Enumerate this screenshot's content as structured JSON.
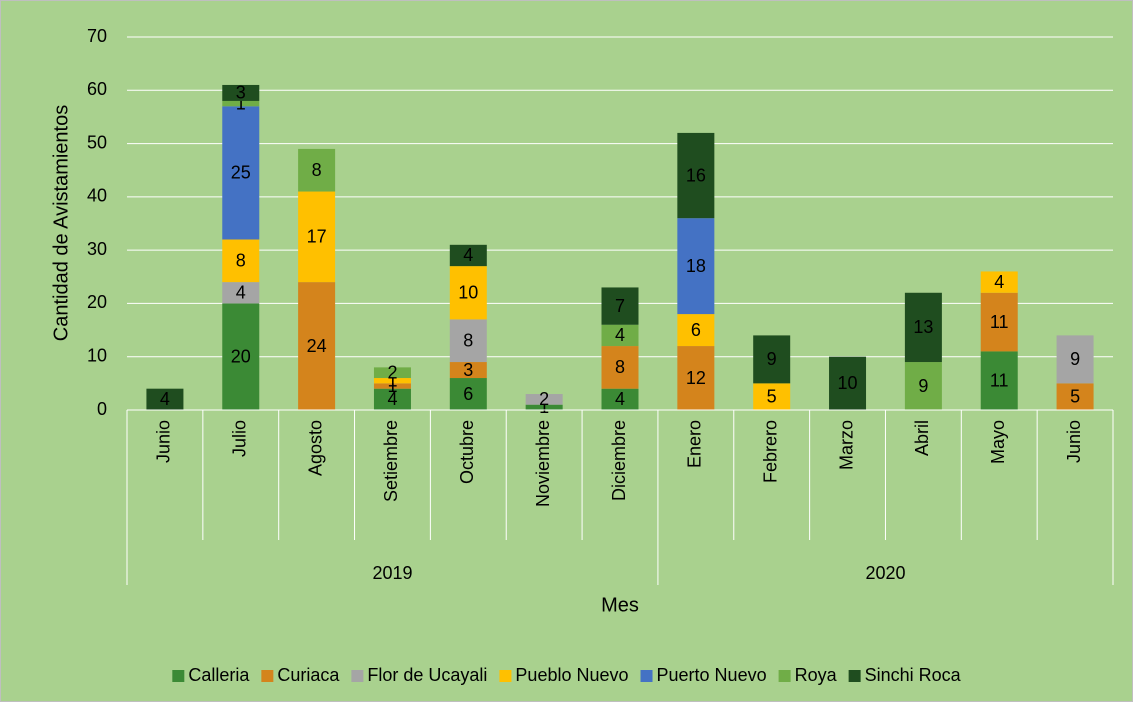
{
  "chart_data": {
    "type": "stacked_bar",
    "y_label": "Cantidad de Avistamientos",
    "x_label": "Mes",
    "categories": [
      "Junio",
      "Julio",
      "Agosto",
      "Setiembre",
      "Octubre",
      "Noviembre",
      "Diciembre",
      "Enero",
      "Febrero",
      "Marzo",
      "Abril",
      "Mayo",
      "Junio"
    ],
    "groups": [
      {
        "name": "2019",
        "span": 7
      },
      {
        "name": "2020",
        "span": 6
      }
    ],
    "series": [
      {
        "name": "Calleria",
        "color": "#3b8a35",
        "values": [
          null,
          20,
          null,
          4,
          6,
          1,
          4,
          null,
          null,
          null,
          null,
          11,
          null
        ]
      },
      {
        "name": "Curiaca",
        "color": "#d4841c",
        "values": [
          null,
          null,
          24,
          1,
          3,
          null,
          8,
          12,
          null,
          null,
          null,
          11,
          5
        ]
      },
      {
        "name": "Flor de Ucayali",
        "color": "#a5a5a5",
        "values": [
          null,
          4,
          null,
          null,
          8,
          2,
          null,
          null,
          null,
          null,
          null,
          null,
          9
        ]
      },
      {
        "name": "Pueblo Nuevo",
        "color": "#ffc000",
        "values": [
          null,
          8,
          17,
          1,
          10,
          null,
          null,
          6,
          5,
          null,
          null,
          4,
          null
        ]
      },
      {
        "name": "Puerto Nuevo",
        "color": "#4472c4",
        "values": [
          null,
          25,
          null,
          null,
          null,
          null,
          null,
          18,
          null,
          null,
          null,
          null,
          null
        ]
      },
      {
        "name": "Roya",
        "color": "#70ad47",
        "values": [
          null,
          1,
          8,
          2,
          null,
          null,
          4,
          null,
          null,
          null,
          9,
          null,
          null
        ]
      },
      {
        "name": "Sinchi Roca",
        "color": "#1f4d1f",
        "values": [
          4,
          3,
          null,
          null,
          4,
          null,
          7,
          16,
          9,
          10,
          13,
          null,
          null
        ]
      }
    ],
    "ylim": [
      0,
      70
    ],
    "yticks": [
      0,
      10,
      20,
      30,
      40,
      50,
      60,
      70
    ],
    "grid": true,
    "legend": "bottom"
  }
}
